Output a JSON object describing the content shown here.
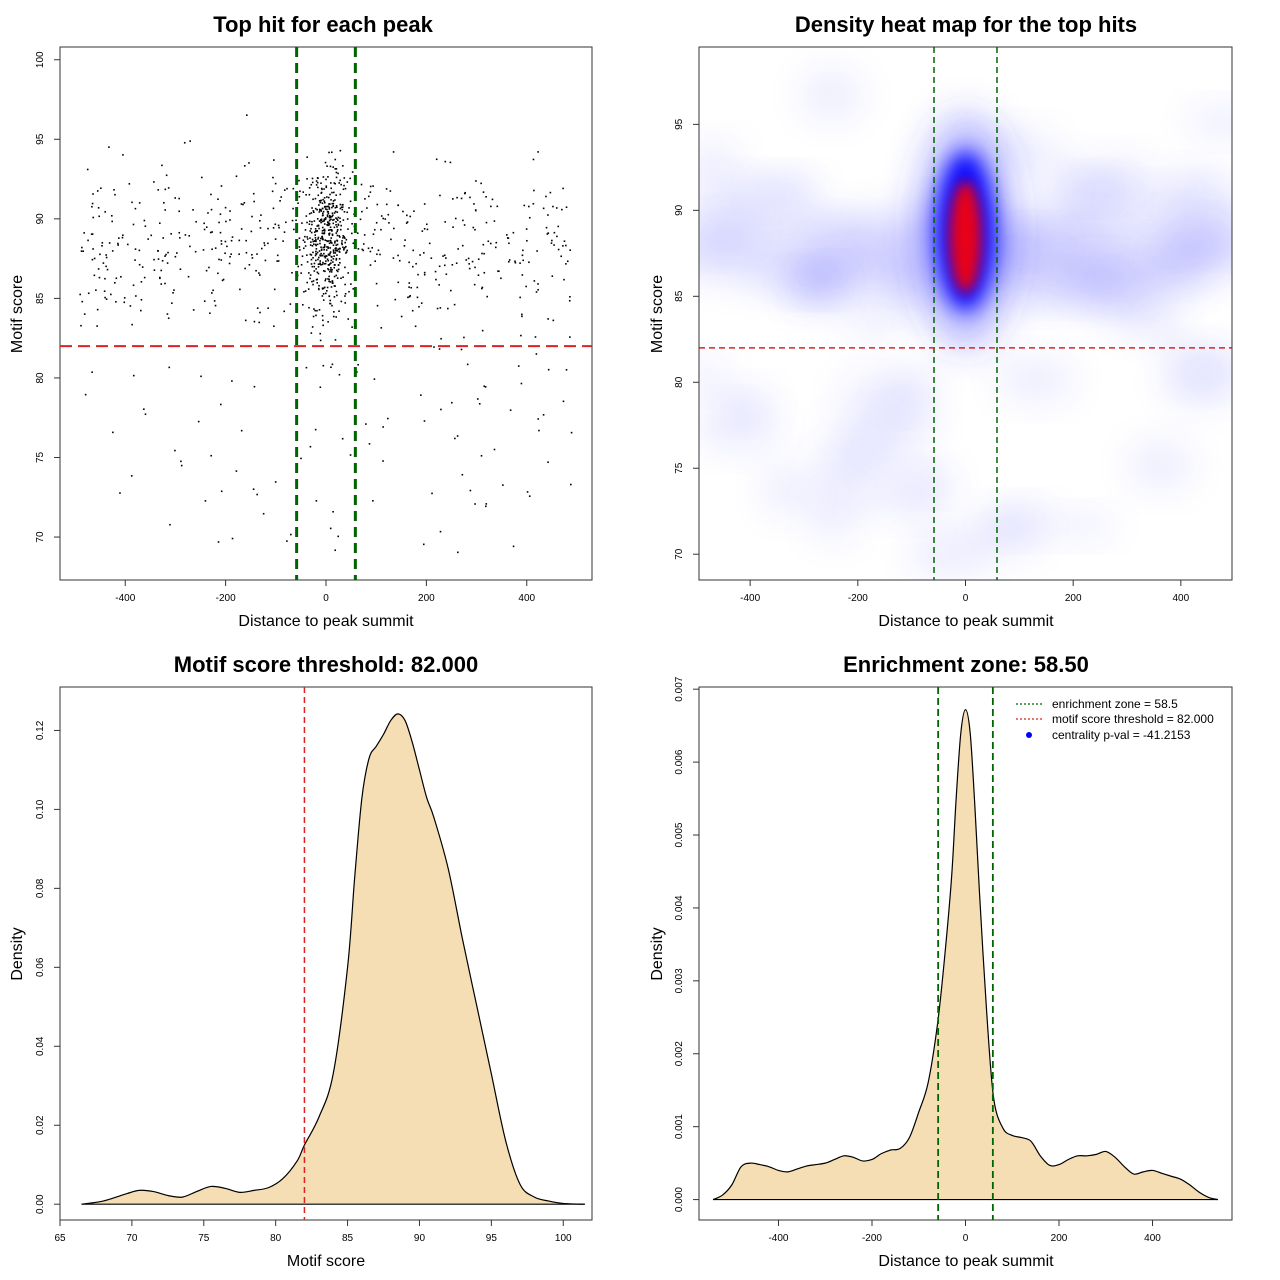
{
  "chart_data": [
    {
      "type": "scatter",
      "title": "Top hit for each peak",
      "xlabel": "Distance to peak summit",
      "ylabel": "Motif score",
      "xlim": [
        -530,
        530
      ],
      "ylim": [
        67.3,
        100.8
      ],
      "xticks": [
        "-400",
        "-200",
        "0",
        "200",
        "400"
      ],
      "xtick_values": [
        -400,
        -200,
        0,
        200,
        400
      ],
      "yticks": [
        "70",
        "75",
        "80",
        "85",
        "90",
        "95",
        "100"
      ],
      "ytick_values": [
        70,
        75,
        80,
        85,
        90,
        95,
        100
      ],
      "vlines": [
        -58.5,
        58.5
      ],
      "hline": 82.0,
      "colors": {
        "points": "#000000",
        "vlines": "#006400",
        "hline": "#dd2222"
      },
      "points_description_count": 1100
    },
    {
      "type": "heatmap",
      "title": "Density heat map for the top hits",
      "xlabel": "Distance to peak summit",
      "ylabel": "Motif score",
      "xlim": [
        -495,
        495
      ],
      "ylim": [
        68.5,
        99.5
      ],
      "xticks": [
        "-400",
        "-200",
        "0",
        "200",
        "400"
      ],
      "xtick_values": [
        -400,
        -200,
        0,
        200,
        400
      ],
      "yticks": [
        "70",
        "75",
        "80",
        "85",
        "90",
        "95"
      ],
      "ytick_values": [
        70,
        75,
        80,
        85,
        90,
        95
      ],
      "vlines": [
        -58.5,
        58.5
      ],
      "hline": 82.0,
      "peak": {
        "x": 0,
        "y": 88.8
      },
      "colors": {
        "low": "#ffffff",
        "mid": "#0000ff",
        "high": "#ff0000",
        "vlines": "#006400",
        "hline": "#dd2222"
      }
    },
    {
      "type": "area",
      "title": "Motif score threshold: 82.000",
      "xlabel": "Motif score",
      "ylabel": "Density",
      "xlim": [
        65,
        102
      ],
      "ylim": [
        -0.004,
        0.131
      ],
      "xticks": [
        "65",
        "70",
        "75",
        "80",
        "85",
        "90",
        "95",
        "100"
      ],
      "xtick_values": [
        65,
        70,
        75,
        80,
        85,
        90,
        95,
        100
      ],
      "yticks": [
        "0.00",
        "0.02",
        "0.04",
        "0.06",
        "0.08",
        "0.10",
        "0.12"
      ],
      "ytick_values": [
        0,
        0.02,
        0.04,
        0.06,
        0.08,
        0.1,
        0.12
      ],
      "vline": 82.0,
      "x": [
        66.5,
        68,
        69.5,
        70.5,
        71.5,
        72.5,
        73.5,
        74.5,
        75.5,
        76.5,
        77.5,
        78.5,
        79.5,
        80.5,
        81.5,
        82,
        83,
        84,
        85,
        85.5,
        86,
        86.5,
        87,
        87.5,
        88,
        88.5,
        89,
        89.5,
        90,
        90.5,
        91,
        92,
        93,
        94,
        95,
        96,
        97,
        98,
        99,
        100,
        101.5
      ],
      "y": [
        0.0,
        0.0008,
        0.0025,
        0.0035,
        0.0032,
        0.0022,
        0.0018,
        0.0032,
        0.0045,
        0.004,
        0.003,
        0.0035,
        0.0042,
        0.0065,
        0.011,
        0.015,
        0.022,
        0.033,
        0.06,
        0.083,
        0.103,
        0.113,
        0.116,
        0.119,
        0.1225,
        0.1242,
        0.1225,
        0.117,
        0.11,
        0.103,
        0.098,
        0.085,
        0.067,
        0.05,
        0.033,
        0.016,
        0.005,
        0.0018,
        0.0008,
        0.0002,
        0.0
      ],
      "colors": {
        "fill": "#f5deb3",
        "line": "#000000",
        "vline": "#dd2222"
      }
    },
    {
      "type": "area",
      "title": "Enrichment zone: 58.50",
      "xlabel": "Distance to peak summit",
      "ylabel": "Density",
      "xlim": [
        -570,
        570
      ],
      "ylim": [
        -0.00028,
        0.00703
      ],
      "xticks": [
        "-400",
        "-200",
        "0",
        "200",
        "400"
      ],
      "xtick_values": [
        -400,
        -200,
        0,
        200,
        400
      ],
      "yticks": [
        "0.000",
        "0.001",
        "0.002",
        "0.003",
        "0.004",
        "0.005",
        "0.006",
        "0.007"
      ],
      "ytick_values": [
        0,
        0.001,
        0.002,
        0.003,
        0.004,
        0.005,
        0.006,
        0.007
      ],
      "vlines": [
        -58.5,
        58.5
      ],
      "x": [
        -540,
        -520,
        -500,
        -480,
        -460,
        -440,
        -420,
        -400,
        -380,
        -360,
        -340,
        -320,
        -300,
        -280,
        -260,
        -240,
        -220,
        -200,
        -180,
        -160,
        -140,
        -120,
        -100,
        -80,
        -60,
        -45,
        -30,
        -20,
        -10,
        0,
        10,
        20,
        30,
        45,
        60,
        80,
        100,
        120,
        140,
        160,
        180,
        200,
        220,
        240,
        260,
        280,
        300,
        320,
        340,
        360,
        380,
        400,
        420,
        440,
        460,
        480,
        500,
        520,
        540
      ],
      "y": [
        0.0,
        6e-05,
        0.0002,
        0.00045,
        0.0005,
        0.00048,
        0.00045,
        0.0004,
        0.00038,
        0.00042,
        0.00046,
        0.00048,
        0.0005,
        0.00055,
        0.0006,
        0.00058,
        0.00053,
        0.00055,
        0.00063,
        0.00068,
        0.0007,
        0.00085,
        0.0012,
        0.0016,
        0.0024,
        0.0033,
        0.0044,
        0.0055,
        0.0064,
        0.00672,
        0.0064,
        0.0054,
        0.0042,
        0.0026,
        0.0014,
        0.00098,
        0.00088,
        0.00085,
        0.0008,
        0.0006,
        0.00047,
        0.00048,
        0.00055,
        0.0006,
        0.0006,
        0.00062,
        0.00066,
        0.00058,
        0.00045,
        0.00035,
        0.00038,
        0.0004,
        0.00036,
        0.00032,
        0.00028,
        0.0002,
        0.0001,
        3e-05,
        0.0
      ],
      "legend": {
        "position": "top-right",
        "entries": [
          {
            "label": "enrichment zone = 58.5",
            "style": "dotted",
            "color": "#006400"
          },
          {
            "label": "motif score threshold = 82.000",
            "style": "dotted",
            "color": "#dd2222"
          },
          {
            "label": "centrality p-val = -41.2153",
            "style": "point",
            "color": "#0000ff"
          }
        ]
      },
      "colors": {
        "fill": "#f5deb3",
        "line": "#000000",
        "vlines": "#006400"
      }
    }
  ]
}
